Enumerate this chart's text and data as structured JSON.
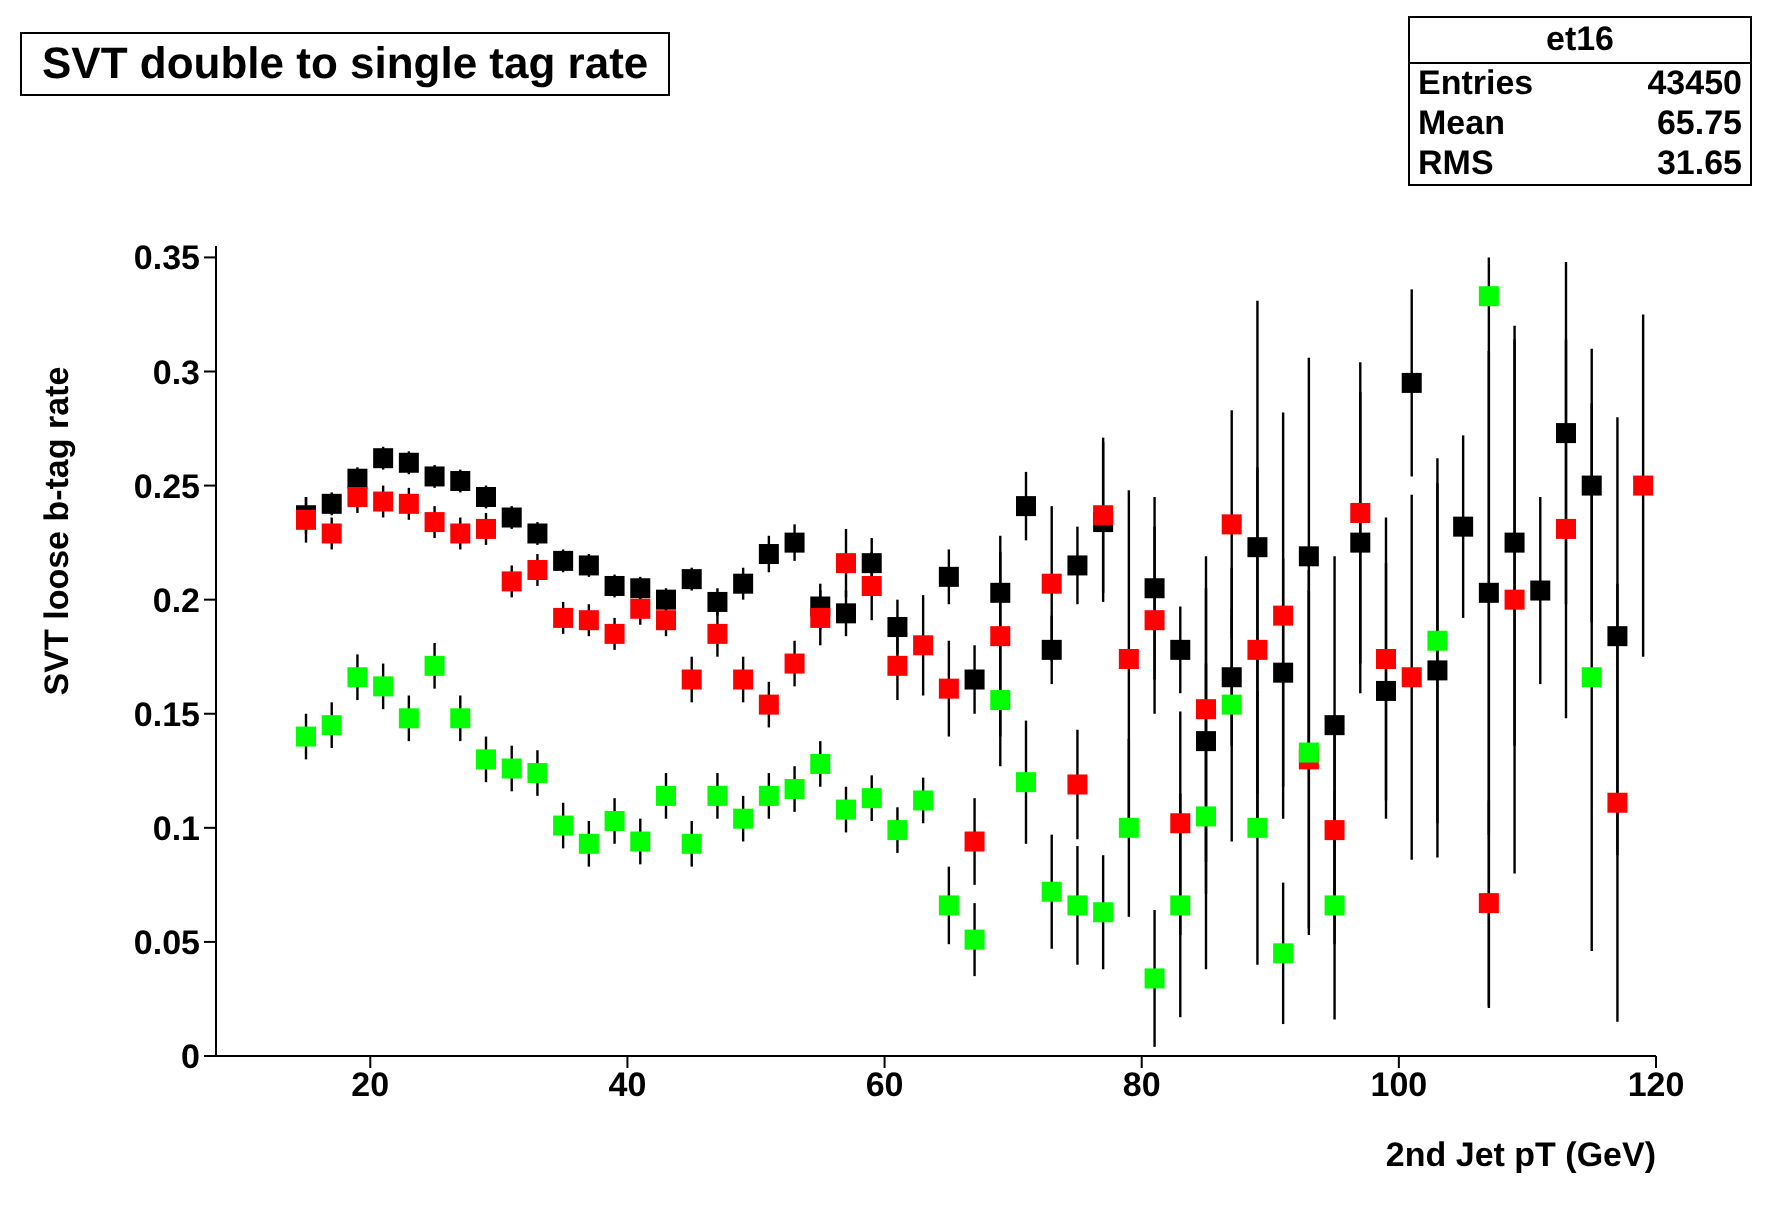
{
  "chart_data": {
    "type": "scatter",
    "title": "SVT double to single tag rate",
    "xlabel": "2nd Jet pT (GeV)",
    "ylabel": "SVT loose b-tag rate",
    "annotations": [
      "et16",
      "Entries",
      "43450",
      "Mean",
      "65.75",
      "RMS",
      "31.65"
    ],
    "x": [
      15,
      17,
      19,
      21,
      23,
      25,
      27,
      29,
      31,
      33,
      35,
      37,
      39,
      41,
      43,
      45,
      47,
      49,
      51,
      53,
      55,
      57,
      59,
      61,
      63,
      65,
      67,
      69,
      71,
      73,
      75,
      77,
      79,
      81,
      83,
      85,
      87,
      89,
      91,
      93,
      95,
      97,
      99,
      101,
      103,
      105,
      107,
      109,
      111,
      113,
      115,
      117,
      119
    ],
    "series": [
      {
        "color": "#000000",
        "values": [
          0.237,
          0.242,
          0.253,
          0.262,
          0.26,
          0.254,
          0.252,
          0.245,
          0.236,
          0.229,
          0.217,
          0.215,
          0.206,
          0.205,
          0.2,
          0.209,
          0.199,
          0.207,
          0.22,
          0.225,
          0.197,
          0.194,
          0.216,
          0.188,
          null,
          0.21,
          0.165,
          0.203,
          0.241,
          0.178,
          0.215,
          0.234,
          null,
          0.205,
          0.178,
          0.138,
          0.166,
          0.223,
          0.168,
          0.219,
          0.145,
          0.225,
          0.16,
          0.295,
          0.169,
          0.232,
          0.203,
          0.225,
          0.204,
          0.273,
          0.25,
          0.184,
          null
        ],
        "errors": [
          0.008,
          0.005,
          0.005,
          0.005,
          0.005,
          0.005,
          0.005,
          0.005,
          0.005,
          0.005,
          0.005,
          0.005,
          0.005,
          0.005,
          0.005,
          0.005,
          0.006,
          0.007,
          0.008,
          0.008,
          0.01,
          0.01,
          0.011,
          0.012,
          null,
          0.012,
          0.015,
          0.018,
          0.015,
          0.015,
          0.017,
          0.035,
          null,
          0.04,
          0.019,
          0.067,
          0.03,
          0.108,
          0.05,
          0.087,
          0.074,
          0.066,
          0.056,
          0.041,
          0.082,
          0.04,
          0.106,
          0.089,
          0.041,
          0.075,
          0.06,
          0.096,
          null
        ]
      },
      {
        "color": "#ff0000",
        "values": [
          0.235,
          0.229,
          0.245,
          0.243,
          0.242,
          0.234,
          0.229,
          0.231,
          0.208,
          0.213,
          0.192,
          0.191,
          0.185,
          0.196,
          0.191,
          0.165,
          0.185,
          0.165,
          0.154,
          0.172,
          0.192,
          0.216,
          0.206,
          0.171,
          0.18,
          0.161,
          0.094,
          0.184,
          null,
          0.207,
          0.119,
          0.237,
          0.174,
          0.191,
          0.102,
          0.152,
          0.233,
          0.178,
          0.193,
          0.13,
          0.099,
          0.238,
          0.174,
          0.166,
          null,
          null,
          0.067,
          0.2,
          null,
          0.231,
          null,
          0.111,
          0.25
        ],
        "errors": [
          0.01,
          0.007,
          0.007,
          0.007,
          0.007,
          0.007,
          0.007,
          0.007,
          0.007,
          0.007,
          0.007,
          0.007,
          0.007,
          0.007,
          0.007,
          0.01,
          0.01,
          0.01,
          0.01,
          0.01,
          0.012,
          0.015,
          0.015,
          0.015,
          0.022,
          0.021,
          0.019,
          0.044,
          null,
          0.034,
          0.024,
          0.034,
          0.074,
          0.041,
          0.049,
          0.067,
          0.05,
          0.08,
          0.089,
          0.074,
          0.05,
          0.066,
          0.062,
          0.08,
          null,
          null,
          0.045,
          0.12,
          null,
          0.083,
          null,
          0.096,
          0.075
        ]
      },
      {
        "color": "#00ff00",
        "values": [
          0.14,
          0.145,
          0.166,
          0.162,
          0.148,
          0.171,
          0.148,
          0.13,
          0.126,
          0.124,
          0.101,
          0.093,
          0.103,
          0.094,
          0.114,
          0.093,
          0.114,
          0.104,
          0.114,
          0.117,
          0.128,
          0.108,
          0.113,
          0.099,
          0.112,
          0.066,
          0.051,
          0.156,
          0.12,
          0.072,
          0.066,
          0.063,
          0.1,
          0.034,
          0.066,
          0.105,
          0.154,
          0.1,
          0.045,
          0.133,
          0.066,
          null,
          null,
          null,
          0.182,
          null,
          0.333,
          null,
          null,
          null,
          0.166,
          null,
          null
        ],
        "errors": [
          0.01,
          0.01,
          0.01,
          0.01,
          0.01,
          0.01,
          0.01,
          0.01,
          0.01,
          0.01,
          0.01,
          0.01,
          0.01,
          0.01,
          0.01,
          0.01,
          0.01,
          0.01,
          0.01,
          0.01,
          0.01,
          0.01,
          0.01,
          0.01,
          0.01,
          0.017,
          0.016,
          0.029,
          0.027,
          0.025,
          0.026,
          0.025,
          0.039,
          0.03,
          0.049,
          0.067,
          0.06,
          0.06,
          0.031,
          0.08,
          0.05,
          null,
          null,
          null,
          0.08,
          null,
          [
            0.021,
            0.35
          ],
          null,
          null,
          null,
          0.12,
          null,
          null
        ]
      }
    ],
    "xlim": [
      8,
      120
    ],
    "xticks": [
      20,
      40,
      60,
      80,
      100,
      120
    ],
    "ylim": [
      0,
      0.355
    ],
    "yticks": [
      0,
      0.05,
      0.1,
      0.15,
      0.2,
      0.25,
      0.3,
      0.35
    ],
    "grid": false,
    "legend": false,
    "marker": "square"
  }
}
